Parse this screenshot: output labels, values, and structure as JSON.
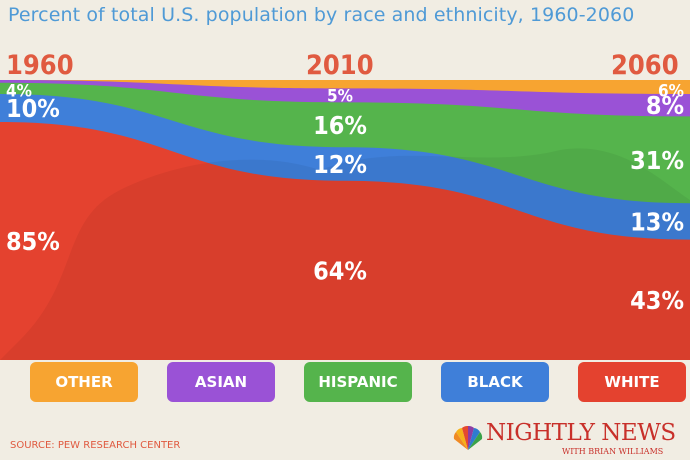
{
  "title": "Percent of total U.S. population by race and ethnicity, 1960-2060",
  "source": "SOURCE: PEW RESEARCH CENTER",
  "brand": {
    "name": "NIGHTLY NEWS",
    "sub": "WITH BRIAN WILLIAMS"
  },
  "colors": {
    "white": "#e4422f",
    "black": "#3f7fd9",
    "hispanic": "#55b44c",
    "asian": "#9a52d6",
    "other": "#f7a431",
    "year": "#e05a40",
    "title": "#4f9ad6"
  },
  "legend": [
    {
      "label": "OTHER",
      "key": "other"
    },
    {
      "label": "ASIAN",
      "key": "asian"
    },
    {
      "label": "HISPANIC",
      "key": "hispanic"
    },
    {
      "label": "BLACK",
      "key": "black"
    },
    {
      "label": "WHITE",
      "key": "white"
    }
  ],
  "chart_data": {
    "type": "area",
    "stacked": true,
    "x": [
      1960,
      2010,
      2060
    ],
    "series": [
      {
        "name": "WHITE",
        "values": [
          85,
          64,
          43
        ]
      },
      {
        "name": "BLACK",
        "values": [
          10,
          12,
          13
        ]
      },
      {
        "name": "HISPANIC",
        "values": [
          4,
          16,
          31
        ]
      },
      {
        "name": "ASIAN",
        "values": [
          1,
          5,
          8
        ]
      },
      {
        "name": "OTHER",
        "values": [
          0,
          3,
          6
        ]
      }
    ],
    "data_labels": [
      {
        "year": 1960,
        "series": "WHITE",
        "text": "85%"
      },
      {
        "year": 1960,
        "series": "BLACK",
        "text": "10%"
      },
      {
        "year": 1960,
        "series": "HISPANIC",
        "text": "4%"
      },
      {
        "year": 2010,
        "series": "WHITE",
        "text": "64%"
      },
      {
        "year": 2010,
        "series": "BLACK",
        "text": "12%"
      },
      {
        "year": 2010,
        "series": "HISPANIC",
        "text": "16%"
      },
      {
        "year": 2010,
        "series": "ASIAN",
        "text": "5%"
      },
      {
        "year": 2060,
        "series": "WHITE",
        "text": "43%"
      },
      {
        "year": 2060,
        "series": "BLACK",
        "text": "13%"
      },
      {
        "year": 2060,
        "series": "HISPANIC",
        "text": "31%"
      },
      {
        "year": 2060,
        "series": "ASIAN",
        "text": "8%"
      },
      {
        "year": 2060,
        "series": "OTHER",
        "text": "6%"
      }
    ],
    "ylim": [
      0,
      100
    ]
  }
}
